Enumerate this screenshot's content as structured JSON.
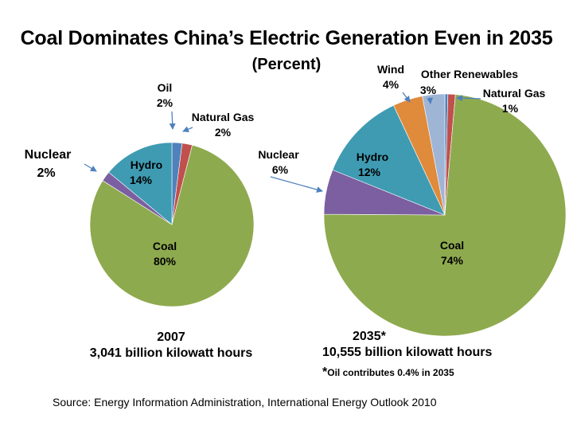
{
  "title": "Coal Dominates China’s Electric Generation Even in 2035",
  "subtitle": "(Percent)",
  "chart_data": [
    {
      "type": "pie",
      "title": "2007",
      "caption_year": "2007",
      "caption_total": "3,041 billion kilowatt hours",
      "slices": [
        {
          "name": "Oil",
          "value": 2,
          "label": "2%",
          "color": "#4f81bd"
        },
        {
          "name": "Natural Gas",
          "value": 2,
          "label": "2%",
          "color": "#c0504d"
        },
        {
          "name": "Coal",
          "value": 80,
          "label": "80%",
          "color": "#8eaa4e"
        },
        {
          "name": "Nuclear",
          "value": 2,
          "label": "2%",
          "color": "#7b5fa0"
        },
        {
          "name": "Hydro",
          "value": 14,
          "label": "14%",
          "color": "#3e9bb2"
        }
      ]
    },
    {
      "type": "pie",
      "title": "2035*",
      "caption_year": "2035*",
      "caption_total": "10,555 billion kilowatt hours",
      "footnote_star": "*",
      "footnote": "Oil contributes 0.4% in 2035",
      "slices": [
        {
          "name": "Oil",
          "value": 0.4,
          "label": "",
          "color": "#4f81bd"
        },
        {
          "name": "Natural Gas",
          "value": 1,
          "label": "1%",
          "color": "#c0504d"
        },
        {
          "name": "Coal",
          "value": 74,
          "label": "74%",
          "color": "#8eaa4e"
        },
        {
          "name": "Nuclear",
          "value": 6,
          "label": "6%",
          "color": "#7b5fa0"
        },
        {
          "name": "Hydro",
          "value": 12,
          "label": "12%",
          "color": "#3e9bb2"
        },
        {
          "name": "Wind",
          "value": 4,
          "label": "4%",
          "color": "#e08a3c"
        },
        {
          "name": "Other Renewables",
          "value": 3,
          "label": "3%",
          "color": "#9fb5d6"
        }
      ]
    }
  ],
  "source": "Source: Energy Information Administration, International Energy Outlook 2010"
}
